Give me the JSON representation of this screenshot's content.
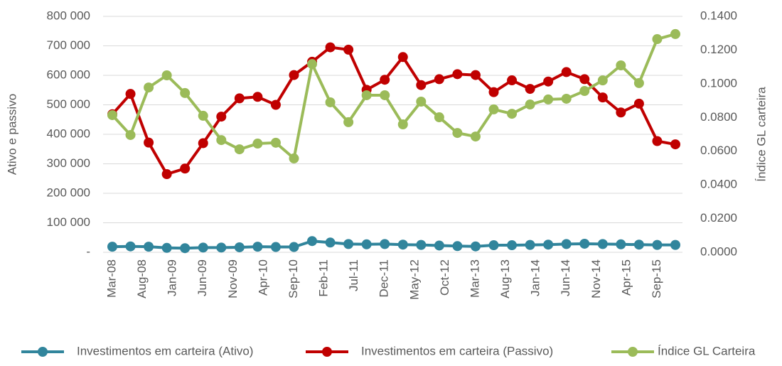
{
  "chart_data": {
    "type": "line",
    "x": [
      "Mar-08",
      "Jun-08",
      "Sep-08",
      "Dec-08",
      "Mar-09",
      "Jun-09",
      "Sep-09",
      "Dec-09",
      "Mar-10",
      "Jun-10",
      "Sep-10",
      "Dec-10",
      "Mar-11",
      "Jun-11",
      "Sep-11",
      "Dec-11",
      "Mar-12",
      "Jun-12",
      "Sep-12",
      "Dec-12",
      "Mar-13",
      "Jun-13",
      "Sep-13",
      "Dec-13",
      "Mar-14",
      "Jun-14",
      "Sep-14",
      "Dec-14",
      "Mar-15",
      "Jun-15",
      "Sep-15",
      "Dec-15"
    ],
    "xticks": [
      "Mar-08",
      "Aug-08",
      "Jan-09",
      "Jun-09",
      "Nov-09",
      "Apr-10",
      "Sep-10",
      "Feb-11",
      "Jul-11",
      "Dec-11",
      "May-12",
      "Oct-12",
      "Mar-13",
      "Aug-13",
      "Jan-14",
      "Jun-14",
      "Nov-14",
      "Apr-15",
      "Sep-15"
    ],
    "ylabel": "Ativo e passivo",
    "y2label": "Índice GL carteira",
    "ylim": [
      0,
      800000
    ],
    "yticks": [
      {
        "value": 0,
        "label": "-"
      },
      {
        "value": 100000,
        "label": "100 000"
      },
      {
        "value": 200000,
        "label": "200 000"
      },
      {
        "value": 300000,
        "label": "300 000"
      },
      {
        "value": 400000,
        "label": "400 000"
      },
      {
        "value": 500000,
        "label": "500 000"
      },
      {
        "value": 600000,
        "label": "600 000"
      },
      {
        "value": 700000,
        "label": "700 000"
      },
      {
        "value": 800000,
        "label": "800 000"
      }
    ],
    "y2lim": [
      0,
      0.14
    ],
    "y2ticks": [
      {
        "value": 0,
        "label": "0.0000"
      },
      {
        "value": 0.02,
        "label": "0.0200"
      },
      {
        "value": 0.04,
        "label": "0.0400"
      },
      {
        "value": 0.06,
        "label": "0.0600"
      },
      {
        "value": 0.08,
        "label": "0.0800"
      },
      {
        "value": 0.1,
        "label": "0.1000"
      },
      {
        "value": 0.12,
        "label": "0.1200"
      },
      {
        "value": 0.14,
        "label": "0.1400"
      }
    ],
    "grid": true,
    "legend": "bottom",
    "series": [
      {
        "name": "Investimentos em carteira (Ativo)",
        "color": "#31859c",
        "values": [
          19000,
          20000,
          19000,
          15000,
          14000,
          16000,
          16000,
          17000,
          19000,
          18000,
          18000,
          38000,
          33000,
          28000,
          27000,
          28000,
          26000,
          25000,
          23000,
          21000,
          20000,
          24000,
          24000,
          25000,
          26000,
          28000,
          29000,
          28000,
          27000,
          26000,
          25000,
          25000
        ]
      },
      {
        "name": "Investimentos em carteira (Passivo)",
        "color": "#c00000",
        "values": [
          468000,
          537000,
          372000,
          265000,
          284000,
          370000,
          460000,
          522000,
          527000,
          500000,
          601000,
          646000,
          695000,
          687000,
          551000,
          585000,
          662000,
          567000,
          587000,
          604000,
          601000,
          543000,
          583000,
          554000,
          579000,
          611000,
          587000,
          525000,
          474000,
          504000,
          377000,
          366000
        ]
      },
      {
        "name": "Índice GL Carteira",
        "color": "#9bbb59",
        "axis": "y2",
        "values": [
          0.0814,
          0.0696,
          0.0978,
          0.105,
          0.0945,
          0.081,
          0.0666,
          0.0611,
          0.0645,
          0.065,
          0.0557,
          0.1117,
          0.089,
          0.0772,
          0.0932,
          0.0932,
          0.0759,
          0.0894,
          0.0801,
          0.0708,
          0.0687,
          0.0848,
          0.0822,
          0.0877,
          0.0907,
          0.0911,
          0.0957,
          0.102,
          0.1109,
          0.1004,
          0.1265,
          0.1295
        ]
      }
    ]
  }
}
